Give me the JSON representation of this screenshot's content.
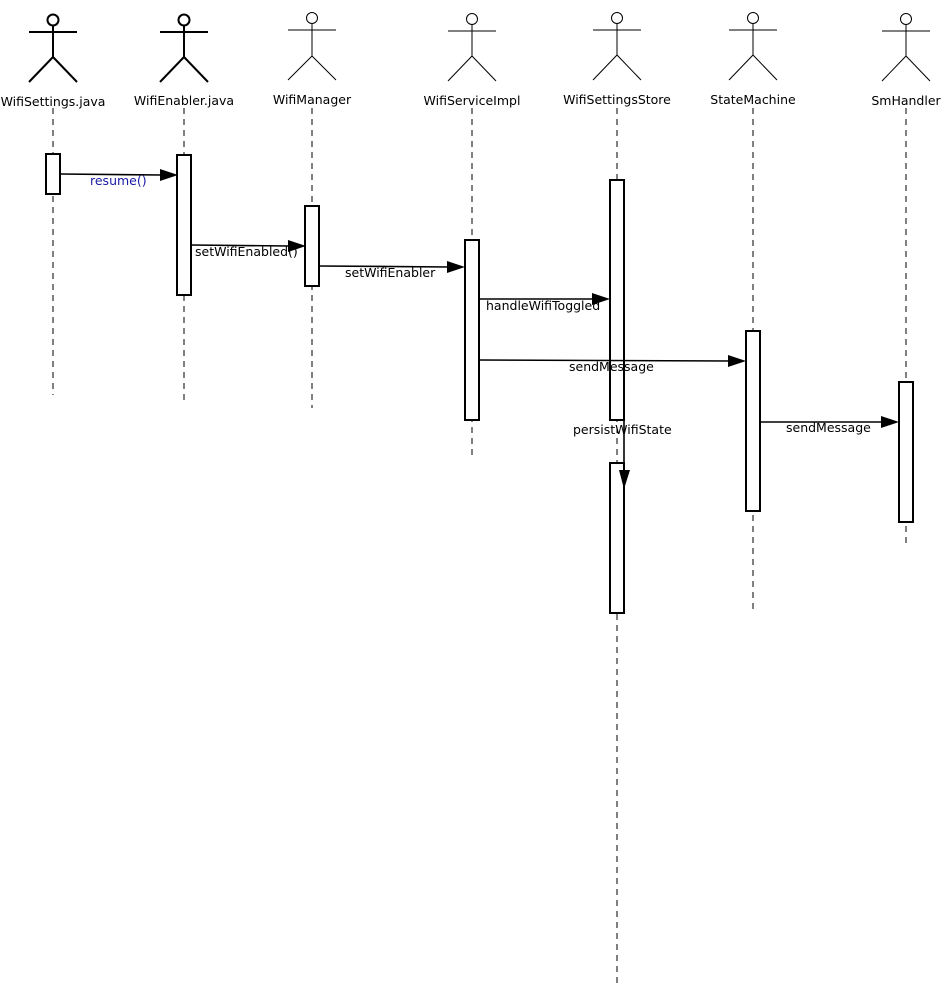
{
  "actors": [
    {
      "id": "wifisettings",
      "label": "WifiSettings.java",
      "style": "bold"
    },
    {
      "id": "wifienabler",
      "label": "WifiEnabler.java",
      "style": "bold"
    },
    {
      "id": "wifimanager",
      "label": "WifiManager",
      "style": "thin"
    },
    {
      "id": "wifiserviceimpl",
      "label": "WifiServiceImpl",
      "style": "thin"
    },
    {
      "id": "wifisettingsstore",
      "label": "WifiSettingsStore",
      "style": "thin"
    },
    {
      "id": "statemachine",
      "label": "StateMachine",
      "style": "thin"
    },
    {
      "id": "smhandler",
      "label": "SmHandler",
      "style": "thin"
    }
  ],
  "messages": [
    {
      "id": "resume",
      "label": "resume()",
      "from": "wifisettings",
      "to": "wifienabler",
      "label_color": "#1a1aa6"
    },
    {
      "id": "setwifienabled",
      "label": "setWifiEnabled()",
      "from": "wifienabler",
      "to": "wifimanager"
    },
    {
      "id": "setwifienabler",
      "label": "setWifiEnabler",
      "from": "wifimanager",
      "to": "wifiserviceimpl"
    },
    {
      "id": "handlewifitoggled",
      "label": "handleWifiToggled",
      "from": "wifiserviceimpl",
      "to": "wifisettingsstore"
    },
    {
      "id": "sendmessage-1",
      "label": "sendMessage",
      "from": "wifiserviceimpl",
      "to": "statemachine"
    },
    {
      "id": "persistwifistate",
      "label": "persistWifiState",
      "from": "wifisettingsstore",
      "to": "wifisettingsstore"
    },
    {
      "id": "sendmessage-2",
      "label": "sendMessage",
      "from": "statemachine",
      "to": "smhandler"
    }
  ]
}
